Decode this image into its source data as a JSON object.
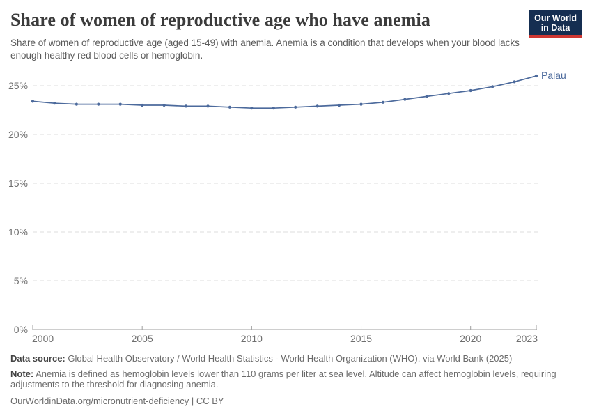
{
  "header": {
    "title": "Share of women of reproductive age who have anemia",
    "subtitle": "Share of women of reproductive age (aged 15-49) with anemia. Anemia is a condition that develops when your blood lacks enough healthy red blood cells or hemoglobin.",
    "logo": {
      "line1": "Our World",
      "line2": "in Data",
      "bg_color": "#152e51",
      "accent_color": "#cf3732"
    }
  },
  "chart_data": {
    "type": "line",
    "title": "Share of women of reproductive age who have anemia",
    "x": [
      2000,
      2001,
      2002,
      2003,
      2004,
      2005,
      2006,
      2007,
      2008,
      2009,
      2010,
      2011,
      2012,
      2013,
      2014,
      2015,
      2016,
      2017,
      2018,
      2019,
      2020,
      2021,
      2022,
      2023
    ],
    "series": [
      {
        "name": "Palau",
        "color": "#4c6a9c",
        "values": [
          23.4,
          23.2,
          23.1,
          23.1,
          23.1,
          23.0,
          23.0,
          22.9,
          22.9,
          22.8,
          22.7,
          22.7,
          22.8,
          22.9,
          23.0,
          23.1,
          23.3,
          23.6,
          23.9,
          24.2,
          24.5,
          24.9,
          25.4,
          26.0
        ]
      }
    ],
    "xlabel": "",
    "ylabel": "",
    "ylim": [
      0,
      27
    ],
    "yticks": [
      0,
      5,
      10,
      15,
      20,
      25
    ],
    "ytick_suffix": "%",
    "xticks": [
      2000,
      2005,
      2010,
      2015,
      2020,
      2023
    ],
    "grid": "horizontal-dashed",
    "legend_position": "end-of-line",
    "colors": {
      "gridline": "#dcdcdc",
      "axis": "#9e9e9e",
      "tick_text": "#6e6e6e"
    }
  },
  "footer": {
    "data_source_label": "Data source:",
    "data_source_text": " Global Health Observatory / World Health Statistics - World Health Organization (WHO), via World Bank (2025)",
    "note_label": "Note:",
    "note_text": " Anemia is defined as hemoglobin levels lower than 110 grams per liter at sea level. Altitude can affect hemoglobin levels, requiring adjustments to the threshold for diagnosing anemia.",
    "license": "OurWorldinData.org/micronutrient-deficiency | CC BY"
  }
}
